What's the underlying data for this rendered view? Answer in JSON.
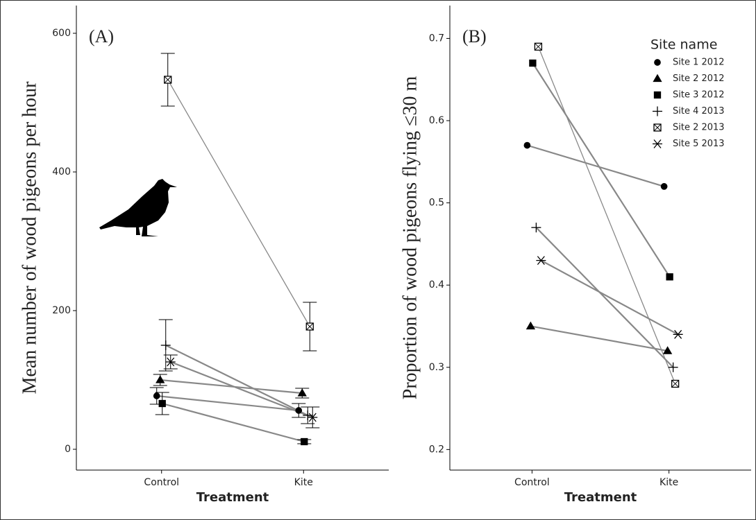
{
  "chart_data": [
    {
      "type": "line",
      "panel_label": "(A)",
      "x_label": "Treatment",
      "y_label": "Mean number of wood pigeons per hour",
      "categories": [
        "Control",
        "Kite"
      ],
      "ylim": [
        -30,
        640
      ],
      "yticks": [
        0,
        200,
        400,
        600
      ],
      "series": [
        {
          "name": "Site 1 2012",
          "marker": "circle",
          "color": "#000000",
          "values": [
            77,
            56
          ],
          "errors": [
            12,
            10
          ]
        },
        {
          "name": "Site 2 2012",
          "marker": "triangle",
          "color": "#000000",
          "values": [
            100,
            81
          ],
          "errors": [
            8,
            7
          ]
        },
        {
          "name": "Site 3 2012",
          "marker": "square",
          "color": "#000000",
          "values": [
            66,
            11
          ],
          "errors": [
            16,
            3
          ]
        },
        {
          "name": "Site 4 2013",
          "marker": "plus",
          "color": "#000000",
          "values": [
            150,
            49
          ],
          "errors": [
            37,
            12
          ]
        },
        {
          "name": "Site 2 2013",
          "marker": "square-x",
          "color": "#000000",
          "values": [
            533,
            177
          ],
          "errors": [
            38,
            35
          ]
        },
        {
          "name": "Site 5 2013",
          "marker": "asterisk",
          "color": "#000000",
          "values": [
            126,
            46
          ],
          "errors": [
            10,
            15
          ]
        }
      ]
    },
    {
      "type": "line",
      "panel_label": "(B)",
      "x_label": "Treatment",
      "y_label": "Proportion of wood pigeons flying ≤30 m",
      "categories": [
        "Control",
        "Kite"
      ],
      "ylim": [
        0.175,
        0.74
      ],
      "yticks": [
        0.2,
        0.3,
        0.4,
        0.5,
        0.6,
        0.7
      ],
      "legend_title": "Site name",
      "legend": "top-right",
      "series": [
        {
          "name": "Site 1 2012",
          "marker": "circle",
          "color": "#000000",
          "values": [
            0.57,
            0.52
          ]
        },
        {
          "name": "Site 2 2012",
          "marker": "triangle",
          "color": "#000000",
          "values": [
            0.35,
            0.32
          ]
        },
        {
          "name": "Site 3 2012",
          "marker": "square",
          "color": "#000000",
          "values": [
            0.67,
            0.41
          ]
        },
        {
          "name": "Site 4 2013",
          "marker": "plus",
          "color": "#000000",
          "values": [
            0.47,
            0.3
          ]
        },
        {
          "name": "Site 2 2013",
          "marker": "square-x",
          "color": "#000000",
          "values": [
            0.69,
            0.28
          ]
        },
        {
          "name": "Site 5 2013",
          "marker": "asterisk",
          "color": "#000000",
          "values": [
            0.43,
            0.34
          ]
        }
      ]
    }
  ]
}
